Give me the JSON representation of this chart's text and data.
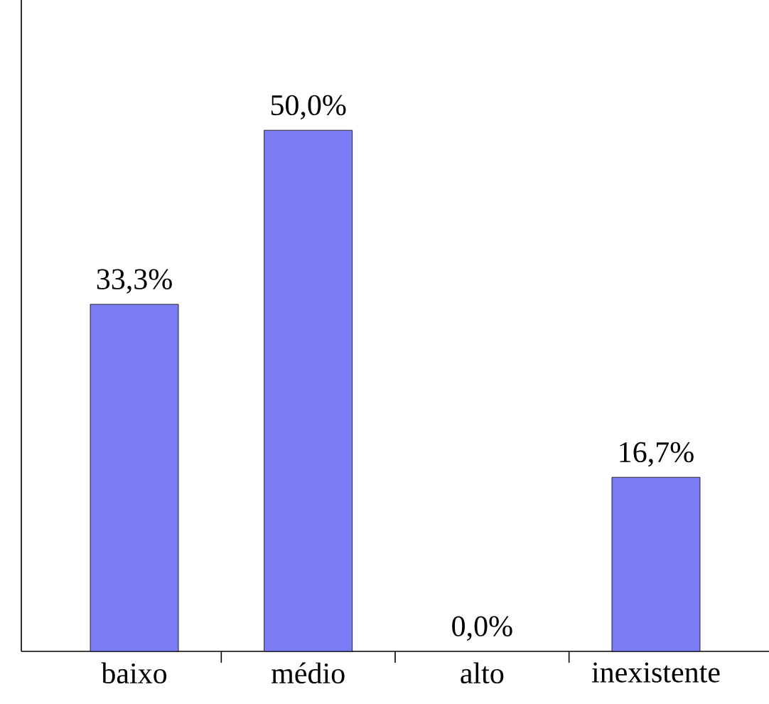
{
  "chart_data": {
    "type": "bar",
    "categories": [
      "baixo",
      "médio",
      "alto",
      "inexistente"
    ],
    "values": [
      33.3,
      50.0,
      0.0,
      16.7
    ],
    "value_labels": [
      "33,3%",
      "50,0%",
      "0,0%",
      "16,7%"
    ],
    "color": "#7b7bf5"
  }
}
